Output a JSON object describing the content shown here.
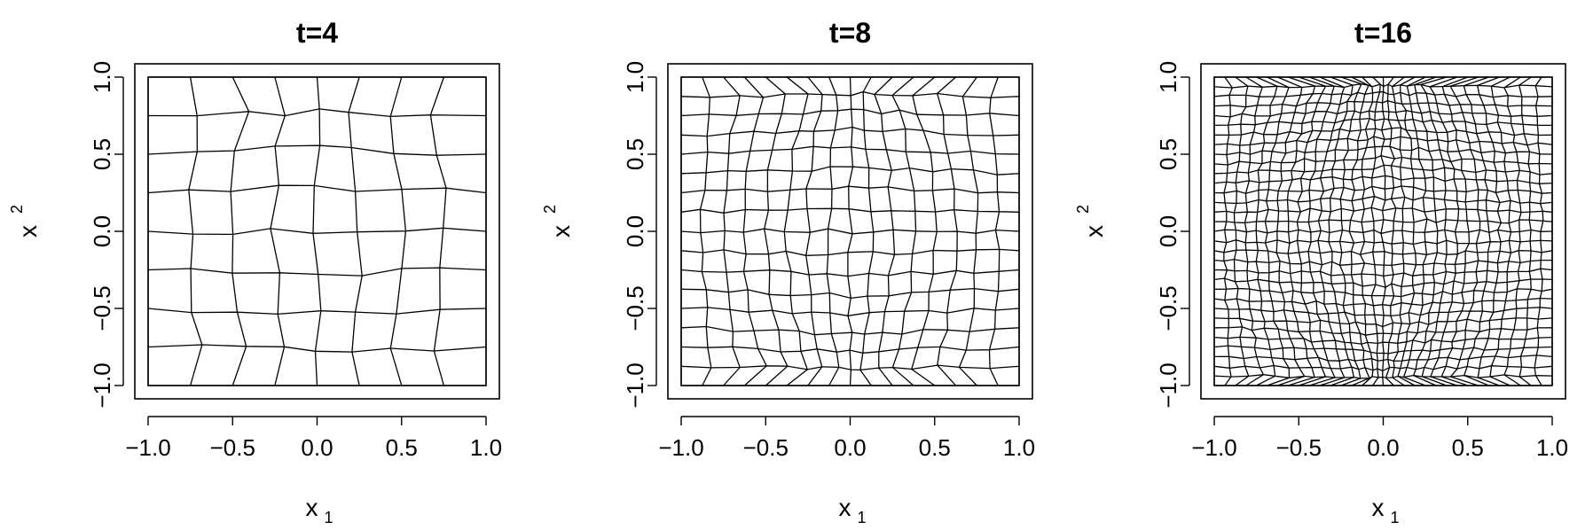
{
  "chart_data": [
    {
      "type": "mesh",
      "title": "t=4",
      "xlabel": "x",
      "xlabel_sub": "1",
      "ylabel": "x",
      "ylabel_sub": "2",
      "xlim": [
        -1.0,
        1.0
      ],
      "ylim": [
        -1.0,
        1.0
      ],
      "xticks": [
        "−1.0",
        "−0.5",
        "0.0",
        "0.5",
        "1.0"
      ],
      "yticks": [
        "−1.0",
        "−0.5",
        "0.0",
        "0.5",
        "1.0"
      ],
      "grid_n": 9,
      "density": 0.55,
      "curve": 0.25,
      "jitter": 0.06,
      "line_color": "#000000"
    },
    {
      "type": "mesh",
      "title": "t=8",
      "xlabel": "x",
      "xlabel_sub": "1",
      "ylabel": "x",
      "ylabel_sub": "2",
      "xlim": [
        -1.0,
        1.0
      ],
      "ylim": [
        -1.0,
        1.0
      ],
      "xticks": [
        "−1.0",
        "−0.5",
        "0.0",
        "0.5",
        "1.0"
      ],
      "yticks": [
        "−1.0",
        "−0.5",
        "0.0",
        "0.5",
        "1.0"
      ],
      "grid_n": 17,
      "density": 0.65,
      "curve": 0.3,
      "jitter": 0.04,
      "line_color": "#000000"
    },
    {
      "type": "mesh",
      "title": "t=16",
      "xlabel": "x",
      "xlabel_sub": "1",
      "ylabel": "x",
      "ylabel_sub": "2",
      "xlim": [
        -1.0,
        1.0
      ],
      "ylim": [
        -1.0,
        1.0
      ],
      "xticks": [
        "−1.0",
        "−0.5",
        "0.0",
        "0.5",
        "1.0"
      ],
      "yticks": [
        "−1.0",
        "−0.5",
        "0.0",
        "0.5",
        "1.0"
      ],
      "grid_n": 33,
      "density": 0.72,
      "curve": 0.3,
      "jitter": 0.03,
      "line_color": "#000000"
    }
  ]
}
